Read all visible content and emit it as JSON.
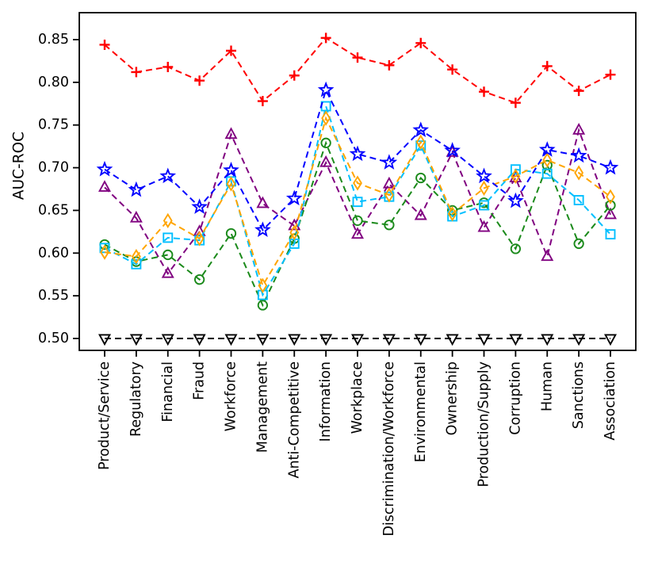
{
  "figure": {
    "ylabel": "AUC-ROC",
    "background_color": "#ffffff",
    "axis_color": "#000000"
  },
  "chart_data": {
    "type": "line",
    "title": "",
    "xlabel": "",
    "ylabel": "AUC-ROC",
    "ylim": [
      0.486,
      0.882
    ],
    "yticks": [
      0.5,
      0.55,
      0.6,
      0.65,
      0.7,
      0.75,
      0.8,
      0.85
    ],
    "grid": false,
    "legend_position": "none",
    "line_style": "dashed",
    "categories": [
      "Product/Service",
      "Regulatory",
      "Financial",
      "Fraud",
      "Workforce",
      "Management",
      "Anti-Competitive",
      "Information",
      "Workplace",
      "Discrimination/Workforce",
      "Environmental",
      "Ownership",
      "Production/Supply",
      "Corruption",
      "Human",
      "Sanctions",
      "Association"
    ],
    "series": [
      {
        "name": "black-triangle-down",
        "color": "#000000",
        "marker": "triangle-down",
        "values": [
          0.5,
          0.5,
          0.5,
          0.5,
          0.5,
          0.5,
          0.5,
          0.5,
          0.5,
          0.5,
          0.5,
          0.5,
          0.5,
          0.5,
          0.5,
          0.5,
          0.5
        ]
      },
      {
        "name": "purple-triangle-up",
        "color": "#800080",
        "marker": "triangle-up",
        "values": [
          0.677,
          0.641,
          0.576,
          0.625,
          0.739,
          0.658,
          0.632,
          0.706,
          0.622,
          0.681,
          0.644,
          0.718,
          0.63,
          0.688,
          0.596,
          0.744,
          0.645
        ]
      },
      {
        "name": "green-circle",
        "color": "#1b8a1b",
        "marker": "circle",
        "values": [
          0.61,
          0.59,
          0.598,
          0.569,
          0.623,
          0.539,
          0.617,
          0.729,
          0.638,
          0.633,
          0.688,
          0.65,
          0.659,
          0.605,
          0.703,
          0.611,
          0.656
        ]
      },
      {
        "name": "cyan-square",
        "color": "#00bfff",
        "marker": "square",
        "values": [
          0.606,
          0.587,
          0.618,
          0.615,
          0.684,
          0.551,
          0.611,
          0.772,
          0.66,
          0.666,
          0.726,
          0.643,
          0.656,
          0.698,
          0.693,
          0.662,
          0.622
        ]
      },
      {
        "name": "orange-diamond",
        "color": "#ffa500",
        "marker": "diamond",
        "values": [
          0.601,
          0.596,
          0.638,
          0.617,
          0.681,
          0.562,
          0.624,
          0.758,
          0.682,
          0.668,
          0.73,
          0.646,
          0.676,
          0.69,
          0.709,
          0.694,
          0.666
        ]
      },
      {
        "name": "blue-star",
        "color": "#0000ff",
        "marker": "star",
        "values": [
          0.698,
          0.674,
          0.69,
          0.654,
          0.697,
          0.627,
          0.664,
          0.791,
          0.716,
          0.706,
          0.744,
          0.72,
          0.69,
          0.661,
          0.721,
          0.714,
          0.7
        ]
      },
      {
        "name": "red-plus",
        "color": "#ff0000",
        "marker": "plus",
        "values": [
          0.844,
          0.812,
          0.818,
          0.802,
          0.837,
          0.778,
          0.808,
          0.852,
          0.829,
          0.82,
          0.846,
          0.815,
          0.789,
          0.776,
          0.819,
          0.79,
          0.809
        ]
      }
    ]
  }
}
